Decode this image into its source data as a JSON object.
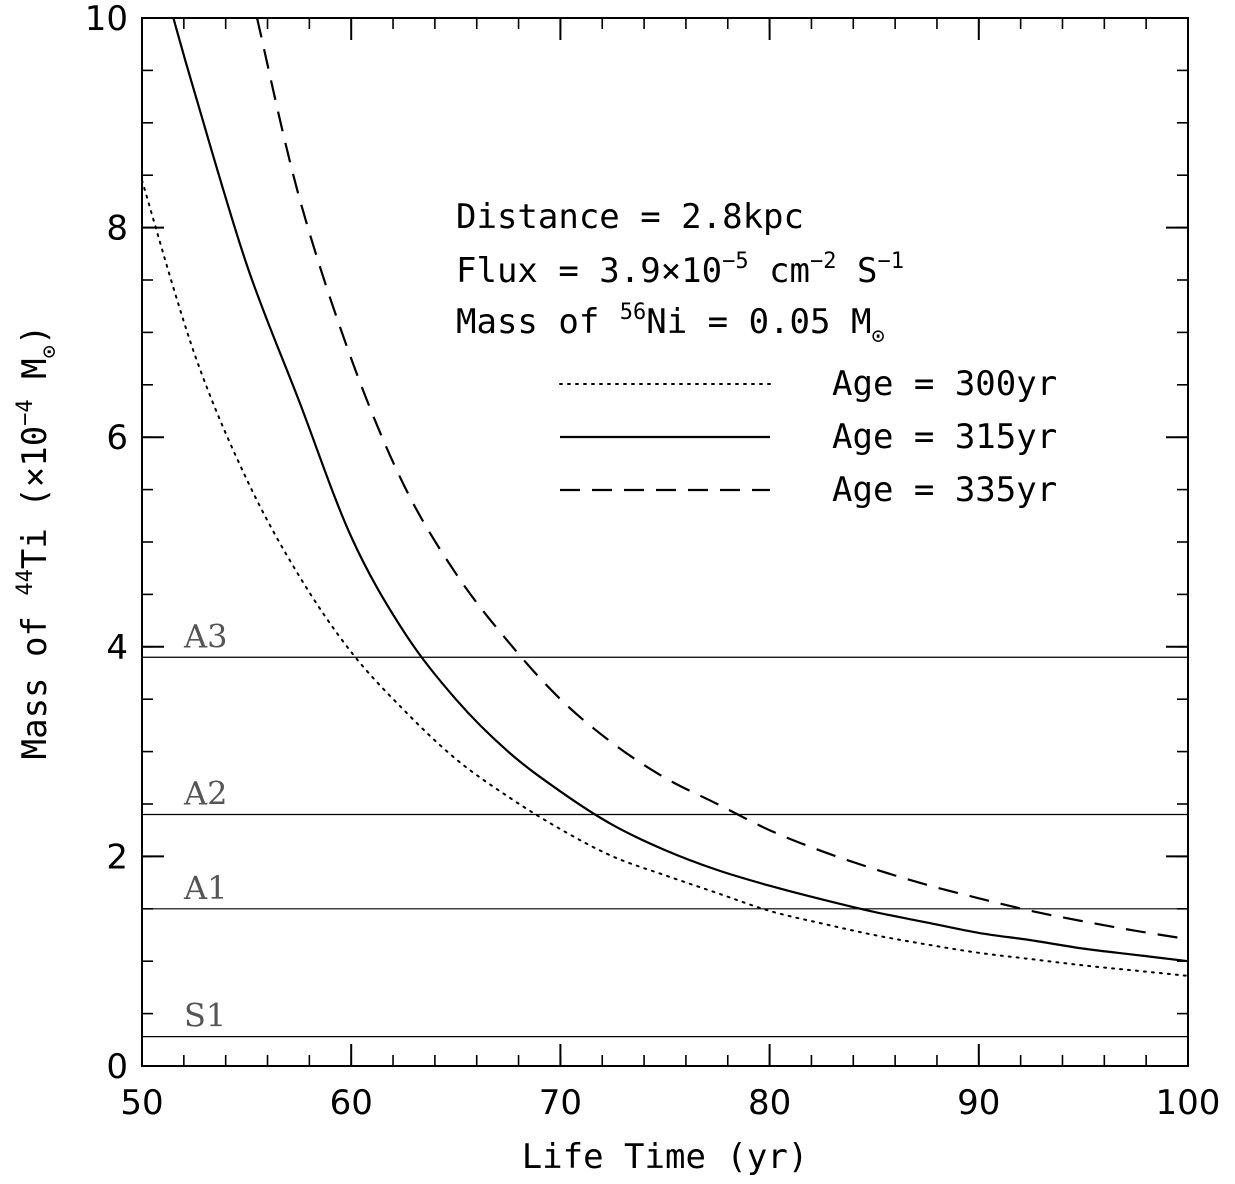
{
  "chart_data": {
    "type": "line",
    "xlabel": "Life Time (yr)",
    "ylabel": {
      "prefix": "Mass of ",
      "sup": "44",
      "main": "Ti (×10",
      "exp": "−4",
      "unit": " M",
      "unit_sub": "⊙",
      "close": ")"
    },
    "xlim": [
      50,
      100
    ],
    "ylim": [
      0,
      10
    ],
    "x_ticks": [
      50,
      60,
      70,
      80,
      90,
      100
    ],
    "x_tick_labels": [
      "50",
      "60",
      "70",
      "80",
      "90",
      "100"
    ],
    "y_ticks": [
      0,
      2,
      4,
      6,
      8,
      10
    ],
    "y_tick_labels": [
      "0",
      "2",
      "4",
      "6",
      "8",
      "10"
    ],
    "x_minor_step": 2,
    "y_minor_step": 0.5,
    "grid": false,
    "legend_position": "upper-right",
    "annotations": {
      "distance": "Distance = 2.8kpc",
      "flux_pre": "Flux = 3.9×10",
      "flux_exp1": "−5",
      "flux_mid": " cm",
      "flux_exp2": "−2",
      "flux_post": " S",
      "flux_exp3": "−1",
      "ni_pre": "Mass of ",
      "ni_sup": "56",
      "ni_post": "Ni = 0.05 M",
      "ni_sub": "⊙"
    },
    "series": [
      {
        "name": "Age = 300yr",
        "style": "dotted",
        "x": [
          50,
          52.5,
          55,
          57.5,
          60,
          62.5,
          65,
          67.5,
          70,
          72.5,
          75,
          77.5,
          80,
          82.5,
          85,
          87.5,
          90,
          92.5,
          95,
          97.5,
          100
        ],
        "y": [
          8.45,
          6.8,
          5.6,
          4.68,
          3.95,
          3.4,
          2.93,
          2.57,
          2.26,
          2.0,
          1.82,
          1.65,
          1.48,
          1.36,
          1.25,
          1.16,
          1.08,
          1.02,
          0.96,
          0.91,
          0.86
        ]
      },
      {
        "name": "Age = 315yr",
        "style": "solid",
        "x": [
          51.5,
          52.5,
          55,
          57.5,
          60,
          62.5,
          65,
          67.5,
          70,
          72.5,
          75,
          77.5,
          80,
          82.5,
          85,
          87.5,
          90,
          92.5,
          95,
          97.5,
          100
        ],
        "y": [
          10.0,
          9.3,
          7.65,
          6.35,
          5.05,
          4.15,
          3.5,
          3.0,
          2.62,
          2.3,
          2.06,
          1.87,
          1.72,
          1.59,
          1.47,
          1.37,
          1.27,
          1.2,
          1.12,
          1.06,
          1.0
        ]
      },
      {
        "name": "Age = 335yr",
        "style": "dashed",
        "x": [
          55.5,
          57.5,
          60,
          62.5,
          65,
          67.5,
          70,
          72.5,
          75,
          77.5,
          80,
          82.5,
          85,
          87.5,
          90,
          92.5,
          95,
          97.5,
          100
        ],
        "y": [
          10.0,
          8.3,
          6.75,
          5.55,
          4.7,
          4.05,
          3.5,
          3.08,
          2.75,
          2.5,
          2.25,
          2.05,
          1.88,
          1.73,
          1.6,
          1.48,
          1.38,
          1.29,
          1.21
        ]
      }
    ],
    "reference_lines": [
      {
        "label": "A3",
        "y": 3.9
      },
      {
        "label": "A2",
        "y": 2.4
      },
      {
        "label": "A1",
        "y": 1.5
      },
      {
        "label": "S1",
        "y": 0.28
      }
    ]
  }
}
